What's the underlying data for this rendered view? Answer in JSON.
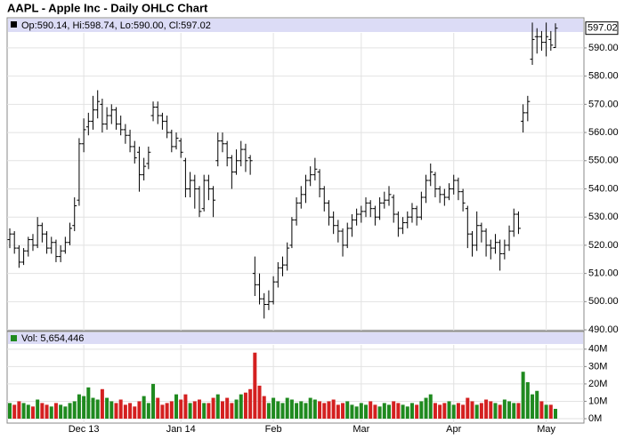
{
  "chart_data": {
    "type": "ohlc",
    "title": "AAPL - Apple Inc - Daily OHLC Chart",
    "info_text": "Op:590.14, Hi:598.74, Lo:590.00, Cl:597.02",
    "last_price": {
      "value": 597.02,
      "label": "597.02"
    },
    "up_color": "#1f8a1f",
    "down_color": "#d42020",
    "bar_color": "#000000",
    "grid": true,
    "categories": [
      null,
      null,
      null,
      null,
      null,
      null,
      null,
      null,
      null,
      null,
      null,
      null,
      null,
      null,
      null,
      null,
      "Dec 13",
      null,
      null,
      null,
      null,
      null,
      null,
      null,
      null,
      null,
      null,
      null,
      null,
      null,
      null,
      null,
      null,
      null,
      null,
      null,
      null,
      "Jan 14",
      null,
      null,
      null,
      null,
      null,
      null,
      null,
      null,
      null,
      null,
      null,
      null,
      null,
      null,
      null,
      null,
      null,
      null,
      null,
      "Feb",
      null,
      null,
      null,
      null,
      null,
      null,
      null,
      null,
      null,
      null,
      null,
      null,
      null,
      null,
      null,
      null,
      null,
      null,
      "Mar",
      null,
      null,
      null,
      null,
      null,
      null,
      null,
      null,
      null,
      null,
      null,
      null,
      null,
      null,
      null,
      null,
      null,
      null,
      null,
      "Apr",
      null,
      null,
      null,
      null,
      null,
      null,
      null,
      null,
      null,
      null,
      null,
      null,
      null,
      null,
      null,
      null,
      null,
      null,
      null,
      "May",
      null,
      null
    ],
    "open": [
      522,
      524,
      519,
      514,
      518,
      522,
      520,
      527,
      524,
      519,
      521,
      516,
      518,
      521,
      527,
      536,
      556,
      562,
      564,
      568,
      570,
      563,
      566,
      568,
      563,
      561,
      559,
      555,
      553,
      545,
      549,
      566,
      569,
      566,
      564,
      560,
      555,
      557,
      550,
      540,
      543,
      540,
      533,
      543,
      540,
      550,
      557,
      556,
      551,
      546,
      550,
      554,
      551,
      510,
      506,
      501,
      499,
      500,
      507,
      512,
      513,
      520,
      529,
      535,
      538,
      543,
      545,
      546,
      540,
      535,
      530,
      527,
      525,
      520,
      526,
      529,
      531,
      532,
      535,
      533,
      530,
      535,
      536,
      537,
      531,
      526,
      528,
      530,
      533,
      530,
      537,
      543,
      545,
      540,
      538,
      537,
      540,
      543,
      539,
      533,
      524,
      520,
      527,
      525,
      520,
      519,
      521,
      517,
      520,
      525,
      531,
      564,
      567,
      586,
      594,
      594,
      592,
      593,
      590.14
    ],
    "high": [
      526,
      525,
      520,
      519,
      523,
      524,
      530,
      528,
      525,
      523,
      522,
      520,
      523,
      528,
      537,
      558,
      565,
      567,
      573,
      575,
      572,
      569,
      570,
      569,
      566,
      563,
      561,
      557,
      555,
      551,
      555,
      571,
      571,
      567,
      566,
      561,
      560,
      558,
      551,
      546,
      545,
      541,
      545,
      545,
      541,
      560,
      560,
      557,
      552,
      554,
      557,
      556,
      552,
      516,
      510,
      503,
      504,
      509,
      514,
      516,
      521,
      530,
      537,
      541,
      545,
      548,
      551,
      547,
      541,
      536,
      532,
      529,
      526,
      528,
      531,
      533,
      534,
      537,
      536,
      534,
      537,
      539,
      541,
      538,
      532,
      530,
      532,
      535,
      534,
      539,
      545,
      549,
      546,
      541,
      540,
      542,
      545,
      544,
      540,
      534,
      525,
      532,
      528,
      526,
      522,
      524,
      522,
      522,
      527,
      533,
      532,
      570,
      573,
      599,
      597,
      596,
      599,
      596,
      598.74
    ],
    "low": [
      519,
      517,
      512,
      513,
      516,
      518,
      519,
      521,
      517,
      517,
      514,
      514,
      517,
      520,
      525,
      534,
      553,
      559,
      561,
      565,
      560,
      561,
      563,
      561,
      559,
      556,
      553,
      549,
      539,
      543,
      547,
      564,
      563,
      561,
      558,
      553,
      554,
      551,
      537,
      537,
      533,
      530,
      532,
      536,
      530,
      548,
      553,
      548,
      540,
      545,
      548,
      546,
      545,
      502,
      499,
      494,
      497,
      499,
      505,
      509,
      511,
      519,
      527,
      533,
      535,
      541,
      543,
      537,
      532,
      527,
      524,
      521,
      516,
      519,
      523,
      527,
      528,
      530,
      530,
      527,
      529,
      533,
      534,
      528,
      523,
      524,
      526,
      528,
      527,
      529,
      535,
      541,
      537,
      535,
      534,
      536,
      538,
      536,
      532,
      519,
      516,
      518,
      521,
      516,
      515,
      517,
      511,
      515,
      518,
      523,
      524,
      560,
      564,
      584,
      588,
      589,
      587,
      589,
      590.0
    ],
    "close": [
      524,
      519,
      514,
      518,
      522,
      520,
      527,
      524,
      519,
      521,
      516,
      518,
      521,
      526,
      534,
      556,
      561,
      564,
      568,
      571,
      563,
      566,
      568,
      563,
      561,
      559,
      555,
      551,
      545,
      548,
      553,
      569,
      566,
      564,
      560,
      555,
      558,
      553,
      540,
      543,
      540,
      532,
      543,
      540,
      536,
      557,
      556,
      551,
      546,
      550,
      554,
      550,
      550,
      506,
      501,
      499,
      500,
      507,
      512,
      513,
      519,
      529,
      535,
      538,
      543,
      545,
      547,
      540,
      535,
      530,
      527,
      525,
      520,
      526,
      529,
      531,
      532,
      535,
      533,
      530,
      535,
      536,
      538,
      531,
      526,
      528,
      530,
      533,
      530,
      537,
      543,
      546,
      540,
      538,
      537,
      540,
      543,
      539,
      535,
      524,
      520,
      527,
      525,
      520,
      519,
      521,
      517,
      520,
      525,
      531,
      526,
      567,
      571,
      593,
      594,
      592,
      594,
      591,
      597.02
    ],
    "ylim": [
      489.7,
      600.7
    ],
    "yticks": [
      {
        "value": 490,
        "label": "490.00"
      },
      {
        "value": 500,
        "label": "500.00"
      },
      {
        "value": 510,
        "label": "510.00"
      },
      {
        "value": 520,
        "label": "520.00"
      },
      {
        "value": 530,
        "label": "530.00"
      },
      {
        "value": 540,
        "label": "540.00"
      },
      {
        "value": 550,
        "label": "550.00"
      },
      {
        "value": 560,
        "label": "560.00"
      },
      {
        "value": 570,
        "label": "570.00"
      },
      {
        "value": 580,
        "label": "580.00"
      },
      {
        "value": 590,
        "label": "590.00"
      }
    ],
    "volume": {
      "label": "Vol: 5,654,446",
      "values": [
        9,
        8,
        10,
        9,
        8,
        7,
        11,
        9,
        8,
        7,
        9,
        8,
        7,
        9,
        10,
        14,
        13,
        18,
        12,
        11,
        17,
        12,
        10,
        9,
        11,
        8,
        9,
        7,
        10,
        13,
        9,
        20,
        12,
        8,
        9,
        10,
        14,
        11,
        14,
        9,
        10,
        11,
        9,
        9,
        12,
        14,
        10,
        12,
        9,
        11,
        14,
        15,
        17,
        38,
        19,
        13,
        9,
        12,
        10,
        9,
        12,
        11,
        9,
        10,
        9,
        12,
        11,
        10,
        9,
        10,
        11,
        8,
        9,
        10,
        8,
        7,
        9,
        8,
        10,
        8,
        7,
        9,
        8,
        10,
        9,
        8,
        7,
        9,
        8,
        10,
        12,
        14,
        9,
        8,
        9,
        10,
        8,
        9,
        8,
        12,
        10,
        8,
        9,
        11,
        10,
        9,
        8,
        11,
        10,
        9,
        9,
        27,
        21,
        14,
        16,
        10,
        8,
        8,
        5.65
      ],
      "ylim": [
        0,
        44
      ],
      "yticks": [
        {
          "value": 0,
          "label": "0M"
        },
        {
          "value": 10,
          "label": "10M"
        },
        {
          "value": 20,
          "label": "20M"
        },
        {
          "value": 30,
          "label": "30M"
        },
        {
          "value": 40,
          "label": "40M"
        }
      ]
    }
  }
}
